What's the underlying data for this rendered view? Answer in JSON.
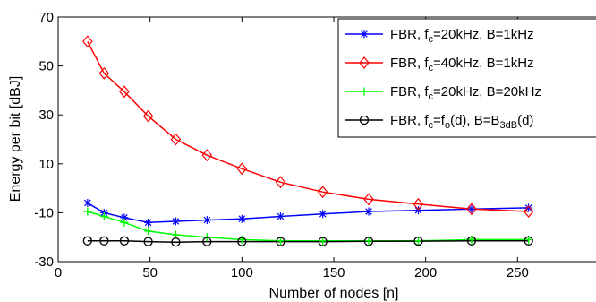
{
  "chart_data": {
    "type": "line",
    "xlabel": "Number of nodes [n]",
    "ylabel": "Energy per bit [dBJ]",
    "xlim": [
      0,
      300
    ],
    "ylim": [
      -30,
      70
    ],
    "xticks": [
      "0",
      "50",
      "100",
      "150",
      "200",
      "250",
      "300"
    ],
    "yticks": [
      "-30",
      "-10",
      "10",
      "30",
      "50",
      "70"
    ],
    "grid": false,
    "legend_position": "top-right",
    "x": [
      16,
      25,
      36,
      49,
      64,
      81,
      100,
      121,
      144,
      169,
      196,
      225,
      256
    ],
    "series": [
      {
        "legend_parts": [
          "FBR, f",
          "c",
          "=20kHz, B=1kHz"
        ],
        "color": "#0000ff",
        "marker": "asterisk",
        "values": [
          -6,
          -10,
          -12,
          -14,
          -13.5,
          -13,
          -12.5,
          -11.5,
          -10.5,
          -9.5,
          -9,
          -8.5,
          -8
        ]
      },
      {
        "legend_parts": [
          "FBR, f",
          "c",
          "=40kHz, B=1kHz"
        ],
        "color": "#ff0000",
        "marker": "diamond",
        "values": [
          60,
          47,
          39.5,
          29.5,
          20,
          13.5,
          8,
          2.5,
          -1.5,
          -4.5,
          -6.5,
          -8.5,
          -9.5
        ]
      },
      {
        "legend_parts": [
          "FBR, f",
          "c",
          "=20kHz, B=20kHz"
        ],
        "color": "#00ff00",
        "marker": "plus",
        "values": [
          -9.5,
          -11.5,
          -14,
          -17.5,
          -19,
          -20,
          -21,
          -21.5,
          -21.5,
          -21.5,
          -21.5,
          -21,
          -21
        ]
      },
      {
        "legend_parts": [
          "FBR, f",
          "c",
          "=f",
          "o",
          "(d), B=B",
          "3dB",
          "(d)"
        ],
        "color": "#000000",
        "marker": "circle",
        "values": [
          -21.5,
          -21.5,
          -21.5,
          -21.8,
          -22,
          -21.8,
          -21.8,
          -21.8,
          -21.8,
          -21.7,
          -21.6,
          -21.5,
          -21.5
        ]
      }
    ]
  }
}
